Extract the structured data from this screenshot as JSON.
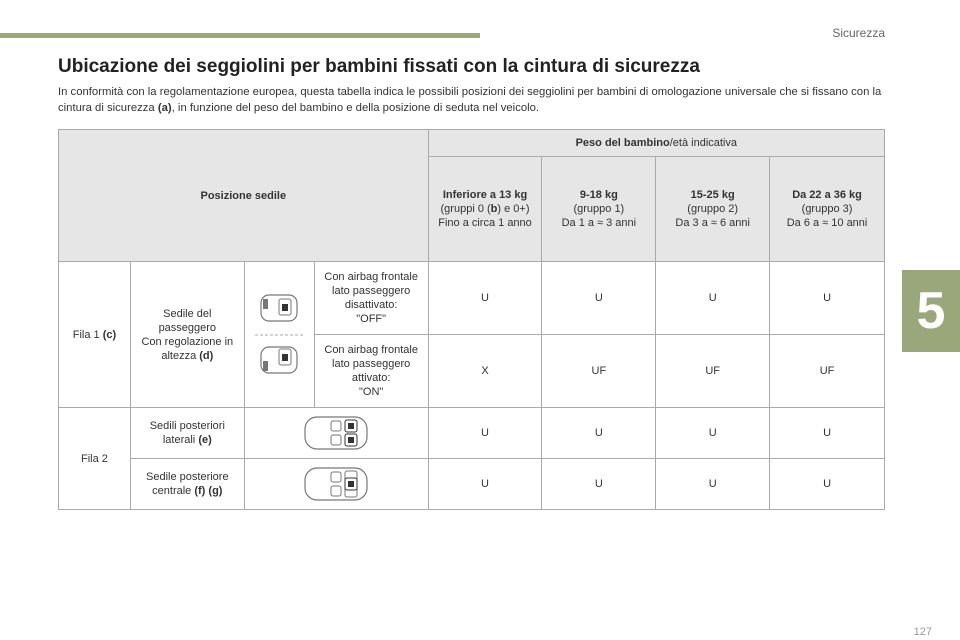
{
  "header": {
    "section": "Sicurezza",
    "chapter": "5"
  },
  "title": "Ubicazione dei seggiolini per bambini fissati con la cintura di sicurezza",
  "intro": {
    "part1": "In conformità con la regolamentazione europea, questa tabella indica le possibili posizioni dei seggiolini per bambini di omologazione universale che si fissano con la cintura di sicurezza ",
    "ref": "(a)",
    "part2": ", in funzione del peso del bambino e della posizione di seduta nel veicolo."
  },
  "table": {
    "position_header": "Posizione sedile",
    "weight_header_bold": "Peso del bambino",
    "weight_header_rest": "/età indicativa",
    "columns": [
      {
        "bold": "Inferiore a 13 kg",
        "line2_a": "(gruppi 0 (",
        "line2_b": "b",
        "line2_c": ") e 0+)",
        "line3": "Fino a circa 1 anno"
      },
      {
        "bold": "9-18 kg",
        "line2": "(gruppo 1)",
        "line3": "Da 1 a ≈ 3 anni"
      },
      {
        "bold": "15-25 kg",
        "line2": "(gruppo 2)",
        "line3": "Da 3 a ≈ 6 anni"
      },
      {
        "bold": "Da 22 a 36 kg",
        "line2": "(gruppo 3)",
        "line3": "Da 6 a ≈ 10 anni"
      }
    ],
    "row1": {
      "label": "Fila 1 ",
      "label_ref": "(c)",
      "seat_l1": "Sedile del",
      "seat_l2": "passeggero",
      "seat_l3": "Con regolazione in",
      "seat_l4": "altezza ",
      "seat_ref": "(d)",
      "off": {
        "l1": "Con airbag frontale",
        "l2": "lato passeggero",
        "l3": "disattivato:",
        "l4": "\"OFF\"",
        "values": [
          "U",
          "U",
          "U",
          "U"
        ]
      },
      "on": {
        "l1": "Con airbag frontale",
        "l2": "lato passeggero",
        "l3": "attivato:",
        "l4": "\"ON\"",
        "values": [
          "X",
          "UF",
          "UF",
          "UF"
        ]
      }
    },
    "row2": {
      "label": "Fila 2",
      "lateral": {
        "l1": "Sedili posteriori",
        "l2": "laterali ",
        "ref": "(e)",
        "values": [
          "U",
          "U",
          "U",
          "U"
        ]
      },
      "central": {
        "l1": "Sedile posteriore",
        "l2": "centrale ",
        "ref": "(f) (g)",
        "values": [
          "U",
          "U",
          "U",
          "U"
        ]
      }
    }
  },
  "page_number": "127"
}
